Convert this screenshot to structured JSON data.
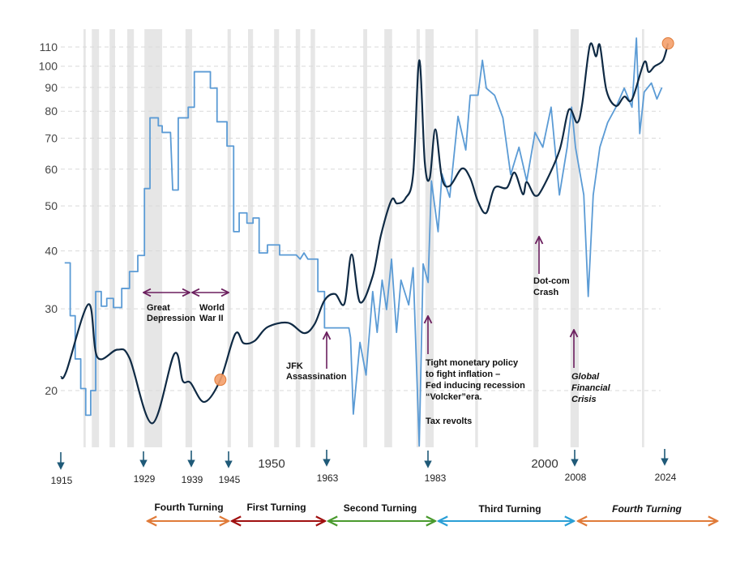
{
  "chart_data": {
    "type": "line",
    "title": "",
    "xlabel": "",
    "ylabel": "",
    "y_scale": "log",
    "ylim": [
      15,
      115
    ],
    "xlim": [
      1915,
      2025
    ],
    "grid": "horizontal dashed",
    "yticks": [
      20,
      30,
      40,
      50,
      60,
      70,
      80,
      90,
      100,
      110
    ],
    "x_axis_labels": [
      "1950",
      "2000"
    ],
    "colors": {
      "dark_series": "#0f2a44",
      "light_series": "#5b9bd5",
      "recession": "#e6e6e6",
      "marker": "#f4a06b",
      "annotation": "#6b1f5e",
      "year_arrow": "#1f5a78"
    },
    "recession_bands": [
      [
        1919.1,
        1919.5
      ],
      [
        1920.6,
        1921.9
      ],
      [
        1923.8,
        1924.8
      ],
      [
        1927.0,
        1928.2
      ],
      [
        1930.1,
        1933.3
      ],
      [
        1937.5,
        1938.7
      ],
      [
        1945.1,
        1945.7
      ],
      [
        1948.8,
        1949.7
      ],
      [
        1953.5,
        1954.4
      ],
      [
        1957.4,
        1958.2
      ],
      [
        1960.1,
        1960.9
      ],
      [
        1969.6,
        1970.3
      ],
      [
        1973.4,
        1974.8
      ],
      [
        1979.2,
        1979.8
      ],
      [
        1980.8,
        1982.3
      ],
      [
        1989.8,
        1990.3
      ],
      [
        2000.3,
        2001.2
      ],
      [
        2007.0,
        2008.5
      ],
      [
        2019.9,
        2020.3
      ]
    ],
    "series": [
      {
        "style": "dark-smooth",
        "points": [
          [
            1915,
            21.4
          ],
          [
            1916,
            22
          ],
          [
            1920,
            30.7
          ],
          [
            1921.6,
            23.6
          ],
          [
            1925.2,
            24.5
          ],
          [
            1927.4,
            23.5
          ],
          [
            1931.5,
            17.0
          ],
          [
            1935.5,
            24
          ],
          [
            1937,
            21
          ],
          [
            1938.4,
            20.8
          ],
          [
            1940.9,
            18.9
          ],
          [
            1943.8,
            21.1
          ],
          [
            1946.5,
            26.5
          ],
          [
            1948,
            25.3
          ],
          [
            1950,
            25.6
          ],
          [
            1952.3,
            27.4
          ],
          [
            1956,
            28
          ],
          [
            1958.9,
            26.6
          ],
          [
            1960.8,
            27.8
          ],
          [
            1962.6,
            31.3
          ],
          [
            1964.5,
            32.3
          ],
          [
            1966.2,
            30.8
          ],
          [
            1967.5,
            39.3
          ],
          [
            1969,
            31
          ],
          [
            1971.3,
            35.3
          ],
          [
            1972.8,
            43.3
          ],
          [
            1974.7,
            51.5
          ],
          [
            1975.7,
            50.6
          ],
          [
            1977.2,
            51.9
          ],
          [
            1978.6,
            58.6
          ],
          [
            1979.7,
            103
          ],
          [
            1980.7,
            62
          ],
          [
            1981.6,
            57.4
          ],
          [
            1982.6,
            73.1
          ],
          [
            1983.8,
            57.4
          ],
          [
            1985.2,
            55.2
          ],
          [
            1987.4,
            60.2
          ],
          [
            1988.9,
            57.4
          ],
          [
            1990.3,
            51.1
          ],
          [
            1991.8,
            48.3
          ],
          [
            1993.3,
            54.7
          ],
          [
            1995.5,
            54.7
          ],
          [
            1996.9,
            59
          ],
          [
            1998.4,
            53
          ],
          [
            1999.1,
            56.3
          ],
          [
            2000.6,
            52.6
          ],
          [
            2002,
            54.7
          ],
          [
            2005,
            65.8
          ],
          [
            2006.7,
            80.6
          ],
          [
            2008.2,
            75.6
          ],
          [
            2009.1,
            82.8
          ],
          [
            2010.5,
            111
          ],
          [
            2011.6,
            105
          ],
          [
            2012.3,
            111
          ],
          [
            2013.5,
            88.6
          ],
          [
            2015.2,
            82.1
          ],
          [
            2016.7,
            86
          ],
          [
            2018.1,
            84.8
          ],
          [
            2020.3,
            102
          ],
          [
            2021.1,
            97.2
          ],
          [
            2022.2,
            100
          ],
          [
            2023.7,
            103
          ],
          [
            2024.6,
            112
          ]
        ]
      },
      {
        "style": "light-step",
        "points": [
          [
            1915.7,
            37.7
          ],
          [
            1916.7,
            37.7
          ],
          [
            1916.7,
            29
          ],
          [
            1917.6,
            29
          ],
          [
            1917.6,
            23.4
          ],
          [
            1918.6,
            23.4
          ],
          [
            1918.6,
            20.2
          ],
          [
            1919.5,
            20.2
          ],
          [
            1919.5,
            17.7
          ],
          [
            1920.4,
            17.7
          ],
          [
            1920.4,
            20
          ],
          [
            1921.3,
            20
          ],
          [
            1921.3,
            32.7
          ],
          [
            1922.3,
            32.7
          ],
          [
            1922.3,
            30.4
          ],
          [
            1923.3,
            30.4
          ],
          [
            1923.3,
            31.6
          ],
          [
            1924.5,
            31.6
          ],
          [
            1924.5,
            30.2
          ],
          [
            1926,
            30.2
          ],
          [
            1926,
            33.2
          ],
          [
            1927.4,
            33.2
          ],
          [
            1927.4,
            36.1
          ],
          [
            1928.9,
            36.1
          ],
          [
            1928.9,
            39.1
          ],
          [
            1930.1,
            39.1
          ],
          [
            1930.1,
            54.5
          ],
          [
            1931.1,
            54.5
          ],
          [
            1931.1,
            77.4
          ],
          [
            1932.6,
            77.4
          ],
          [
            1932.6,
            74.4
          ],
          [
            1933.3,
            74.4
          ],
          [
            1933.3,
            72
          ],
          [
            1934.8,
            72
          ],
          [
            1935.2,
            54.1
          ],
          [
            1936.2,
            54.1
          ],
          [
            1936.2,
            77.4
          ],
          [
            1938,
            77.4
          ],
          [
            1938,
            81.6
          ],
          [
            1939.1,
            81.6
          ],
          [
            1939.1,
            97.3
          ],
          [
            1942,
            97.3
          ],
          [
            1942,
            89.7
          ],
          [
            1943.2,
            89.7
          ],
          [
            1943.2,
            75.9
          ],
          [
            1945,
            75.9
          ],
          [
            1945,
            67.3
          ],
          [
            1946.2,
            67.3
          ],
          [
            1946.2,
            44
          ],
          [
            1947.2,
            44
          ],
          [
            1947.2,
            48.3
          ],
          [
            1948.6,
            48.3
          ],
          [
            1948.6,
            45.9
          ],
          [
            1949.7,
            45.9
          ],
          [
            1949.7,
            47.1
          ],
          [
            1950.8,
            47.1
          ],
          [
            1950.8,
            39.6
          ],
          [
            1952.3,
            39.6
          ],
          [
            1952.3,
            41.2
          ],
          [
            1954.5,
            41.2
          ],
          [
            1954.5,
            39.2
          ],
          [
            1957.5,
            39.2
          ],
          [
            1958.2,
            38.4
          ],
          [
            1958.9,
            39.6
          ],
          [
            1959.6,
            38.4
          ],
          [
            1961.4,
            38.4
          ],
          [
            1961.4,
            32.7
          ],
          [
            1962.6,
            32.7
          ],
          [
            1962.6,
            27.3
          ],
          [
            1967,
            27.3
          ],
          [
            1967.3,
            26
          ],
          [
            1967.8,
            17.8
          ],
          [
            1969,
            25.4
          ],
          [
            1970.1,
            21.6
          ],
          [
            1971.3,
            32.7
          ],
          [
            1972.1,
            26.7
          ],
          [
            1973,
            34.6
          ],
          [
            1973.8,
            29.9
          ],
          [
            1974.7,
            38.4
          ],
          [
            1975.6,
            26.7
          ],
          [
            1976.4,
            34.6
          ],
          [
            1977.8,
            30.6
          ],
          [
            1978.6,
            36.8
          ],
          [
            1979.7,
            15.2
          ],
          [
            1980.4,
            37.5
          ],
          [
            1981.3,
            34.2
          ],
          [
            1981.9,
            56.6
          ],
          [
            1983.1,
            44
          ],
          [
            1983.8,
            58.6
          ],
          [
            1985.2,
            52.2
          ],
          [
            1986.7,
            78
          ],
          [
            1988.1,
            66
          ],
          [
            1988.9,
            86.6
          ],
          [
            1990.3,
            86.6
          ],
          [
            1991.1,
            103
          ],
          [
            1991.8,
            89.7
          ],
          [
            1993.3,
            86.6
          ],
          [
            1994.8,
            77.4
          ],
          [
            1996.2,
            58.4
          ],
          [
            1997.7,
            66.9
          ],
          [
            1999.1,
            56.6
          ],
          [
            2000.6,
            72
          ],
          [
            2002,
            66.9
          ],
          [
            2003.5,
            81.6
          ],
          [
            2005,
            52.8
          ],
          [
            2006.4,
            66.9
          ],
          [
            2007.2,
            81.6
          ],
          [
            2007.9,
            66.9
          ],
          [
            2009.4,
            52.8
          ],
          [
            2010.2,
            31.9
          ],
          [
            2011.1,
            52.8
          ],
          [
            2012.3,
            66.9
          ],
          [
            2013.7,
            75.6
          ],
          [
            2015.2,
            81.6
          ],
          [
            2016.7,
            89.7
          ],
          [
            2018.1,
            81.6
          ],
          [
            2018.9,
            115
          ],
          [
            2019.5,
            71.6
          ],
          [
            2020.3,
            88
          ],
          [
            2021.6,
            92
          ],
          [
            2022.6,
            85
          ],
          [
            2023.5,
            90
          ]
        ]
      }
    ],
    "markers": [
      [
        1943.8,
        21.1
      ],
      [
        2024.6,
        112
      ]
    ],
    "annotations": {
      "great_depression": [
        "Great",
        "Depression"
      ],
      "world_war_ii": [
        "World",
        "War II"
      ],
      "jfk": [
        "JFK",
        "Assassination"
      ],
      "volcker": [
        "Tight monetary policy",
        "to fight inflation –",
        "Fed inducing recession",
        "“Volcker”era.",
        "Tax revolts"
      ],
      "dotcom": [
        "Dot-com",
        "Crash"
      ],
      "gfc": [
        "Global",
        "Financial",
        "Crisis"
      ]
    },
    "year_arrows": [
      "1915",
      "1929",
      "1939",
      "1945",
      "1963",
      "1983",
      "2008",
      "2024"
    ],
    "turnings": [
      "Fourth Turning",
      "First Turning",
      "Second Turning",
      "Third Turning",
      "Fourth Turning"
    ]
  }
}
